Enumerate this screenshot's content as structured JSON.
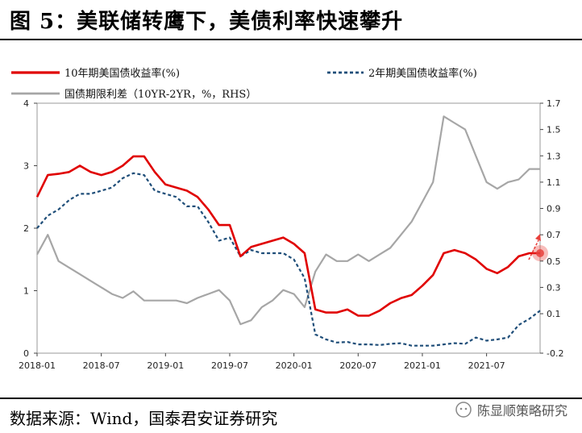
{
  "header": {
    "title": "图 5：美联储转鹰下，美债利率快速攀升"
  },
  "footer": {
    "source": "数据来源：Wind，国泰君安证券研究",
    "watermark": "陈显顺策略研究"
  },
  "colors": {
    "us10y": "#e00000",
    "us2y": "#1f4e79",
    "spread": "#a6a6a6",
    "arrow": "#e8413c"
  },
  "chart_data": {
    "type": "line",
    "x_ticks": [
      "2018-01",
      "2018-07",
      "2019-01",
      "2019-07",
      "2020-01",
      "2020-07",
      "2021-01",
      "2021-07"
    ],
    "left_axis": {
      "ylim": [
        0,
        4
      ],
      "ticks": [
        "0",
        "1",
        "2",
        "3",
        "4"
      ]
    },
    "right_axis": {
      "ylim": [
        -0.2,
        1.7
      ],
      "ticks": [
        "-0.2",
        "0.1",
        "0.3",
        "0.5",
        "0.7",
        "0.9",
        "1.1",
        "1.3",
        "1.5",
        "1.7"
      ]
    },
    "legend": [
      "10年期美国债收益率(%)",
      "2年期美国债收益率(%)",
      "国债期限利差（10YR-2YR，%，RHS）"
    ],
    "x_range": [
      "2018-01",
      "2021-12"
    ],
    "series": [
      {
        "name": "10年期美国债收益率(%)",
        "axis": "left",
        "x": [
          "2018-01",
          "2018-02",
          "2018-03",
          "2018-04",
          "2018-05",
          "2018-06",
          "2018-07",
          "2018-08",
          "2018-09",
          "2018-10",
          "2018-11",
          "2018-12",
          "2019-01",
          "2019-02",
          "2019-03",
          "2019-04",
          "2019-05",
          "2019-06",
          "2019-07",
          "2019-08",
          "2019-09",
          "2019-10",
          "2019-11",
          "2019-12",
          "2020-01",
          "2020-02",
          "2020-03",
          "2020-04",
          "2020-05",
          "2020-06",
          "2020-07",
          "2020-08",
          "2020-09",
          "2020-10",
          "2020-11",
          "2020-12",
          "2021-01",
          "2021-02",
          "2021-03",
          "2021-04",
          "2021-05",
          "2021-06",
          "2021-07",
          "2021-08",
          "2021-09",
          "2021-10",
          "2021-11",
          "2021-12"
        ],
        "values": [
          2.5,
          2.85,
          2.87,
          2.9,
          3.0,
          2.9,
          2.85,
          2.9,
          3.0,
          3.15,
          3.15,
          2.9,
          2.7,
          2.65,
          2.6,
          2.5,
          2.3,
          2.05,
          2.05,
          1.55,
          1.7,
          1.75,
          1.8,
          1.85,
          1.75,
          1.6,
          0.7,
          0.65,
          0.65,
          0.7,
          0.6,
          0.6,
          0.68,
          0.8,
          0.88,
          0.93,
          1.08,
          1.25,
          1.6,
          1.65,
          1.6,
          1.5,
          1.35,
          1.28,
          1.38,
          1.55,
          1.6,
          1.6
        ]
      },
      {
        "name": "2年期美国债收益率(%)",
        "axis": "left",
        "x": [
          "2018-01",
          "2018-02",
          "2018-03",
          "2018-04",
          "2018-05",
          "2018-06",
          "2018-07",
          "2018-08",
          "2018-09",
          "2018-10",
          "2018-11",
          "2018-12",
          "2019-01",
          "2019-02",
          "2019-03",
          "2019-04",
          "2019-05",
          "2019-06",
          "2019-07",
          "2019-08",
          "2019-09",
          "2019-10",
          "2019-11",
          "2019-12",
          "2020-01",
          "2020-02",
          "2020-03",
          "2020-04",
          "2020-05",
          "2020-06",
          "2020-07",
          "2020-08",
          "2020-09",
          "2020-10",
          "2020-11",
          "2020-12",
          "2021-01",
          "2021-02",
          "2021-03",
          "2021-04",
          "2021-05",
          "2021-06",
          "2021-07",
          "2021-08",
          "2021-09",
          "2021-10",
          "2021-11",
          "2021-12"
        ],
        "values": [
          2.0,
          2.2,
          2.3,
          2.45,
          2.55,
          2.55,
          2.6,
          2.65,
          2.8,
          2.88,
          2.85,
          2.6,
          2.55,
          2.5,
          2.35,
          2.35,
          2.1,
          1.8,
          1.85,
          1.55,
          1.65,
          1.6,
          1.6,
          1.6,
          1.5,
          1.2,
          0.3,
          0.22,
          0.17,
          0.18,
          0.14,
          0.14,
          0.13,
          0.15,
          0.16,
          0.12,
          0.12,
          0.12,
          0.14,
          0.16,
          0.15,
          0.25,
          0.2,
          0.22,
          0.25,
          0.45,
          0.55,
          0.68
        ]
      },
      {
        "name": "国债期限利差（10YR-2YR，%，RHS）",
        "axis": "right",
        "x": [
          "2018-01",
          "2018-02",
          "2018-03",
          "2018-04",
          "2018-05",
          "2018-06",
          "2018-07",
          "2018-08",
          "2018-09",
          "2018-10",
          "2018-11",
          "2018-12",
          "2019-01",
          "2019-02",
          "2019-03",
          "2019-04",
          "2019-05",
          "2019-06",
          "2019-07",
          "2019-08",
          "2019-09",
          "2019-10",
          "2019-11",
          "2019-12",
          "2020-01",
          "2020-02",
          "2020-03",
          "2020-04",
          "2020-05",
          "2020-06",
          "2020-07",
          "2020-08",
          "2020-09",
          "2020-10",
          "2020-11",
          "2020-12",
          "2021-01",
          "2021-02",
          "2021-03",
          "2021-04",
          "2021-05",
          "2021-06",
          "2021-07",
          "2021-08",
          "2021-09",
          "2021-10",
          "2021-11",
          "2021-12"
        ],
        "values": [
          0.55,
          0.7,
          0.5,
          0.45,
          0.4,
          0.35,
          0.3,
          0.25,
          0.22,
          0.27,
          0.2,
          0.2,
          0.2,
          0.2,
          0.18,
          0.22,
          0.25,
          0.28,
          0.2,
          0.02,
          0.05,
          0.15,
          0.2,
          0.28,
          0.25,
          0.15,
          0.42,
          0.55,
          0.5,
          0.5,
          0.55,
          0.5,
          0.55,
          0.6,
          0.7,
          0.8,
          0.95,
          1.1,
          1.6,
          1.55,
          1.5,
          1.3,
          1.1,
          1.05,
          1.1,
          1.12,
          1.2,
          1.2
        ]
      }
    ]
  }
}
